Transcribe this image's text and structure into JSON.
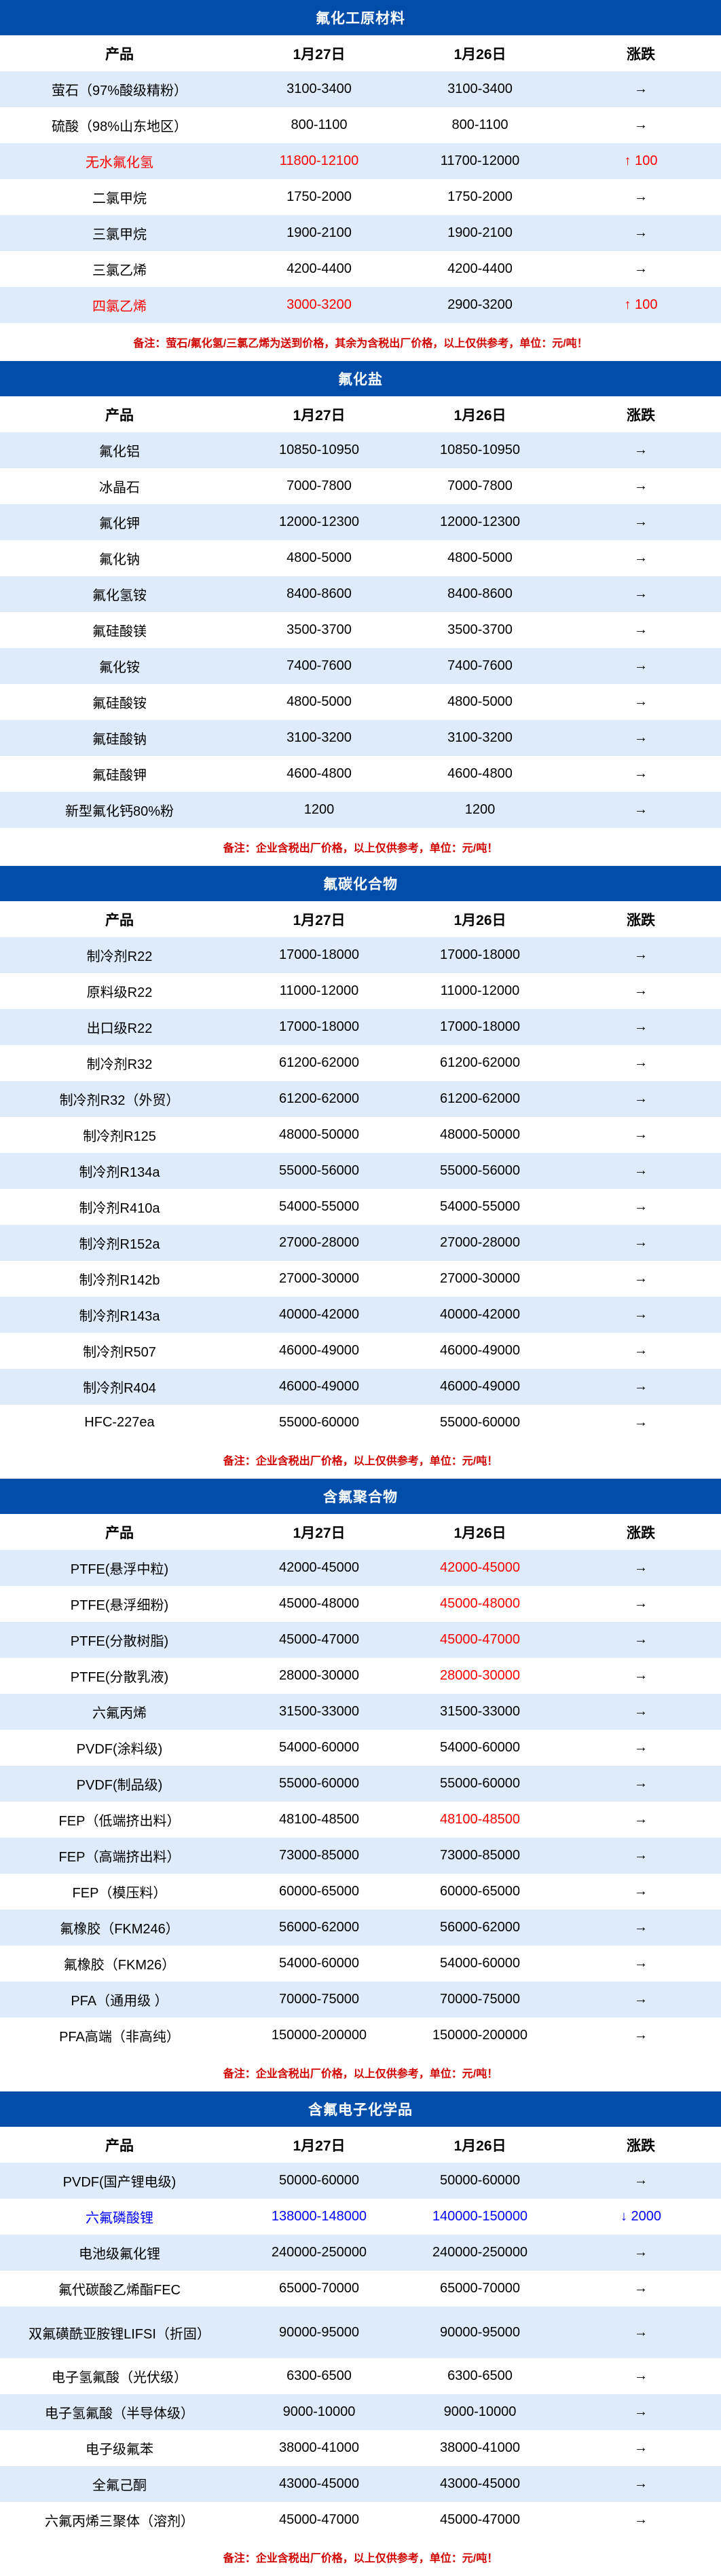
{
  "colors": {
    "header_bg": "#004DAA",
    "stripe": "#DDEBFB",
    "up": "#FF0000",
    "down": "#0000FF",
    "note": "#D00000"
  },
  "columns": [
    "产品",
    "1月27日",
    "1月26日",
    "涨跌"
  ],
  "sections": [
    {
      "title": "氟化工原材料",
      "rows": [
        {
          "cells": [
            "萤石（97%酸级精粉）",
            "3100-3400",
            "3100-3400",
            "→"
          ]
        },
        {
          "cells": [
            "硫酸（98%山东地区）",
            "800-1100",
            "800-1100",
            "→"
          ]
        },
        {
          "cells": [
            "无水氟化氢",
            "11800-12100",
            "11700-12000",
            "↑ 100"
          ],
          "cell_colors": [
            "#FF0000",
            "#FF0000",
            "",
            "#FF0000"
          ]
        },
        {
          "cells": [
            "二氯甲烷",
            "1750-2000",
            "1750-2000",
            "→"
          ]
        },
        {
          "cells": [
            "三氯甲烷",
            "1900-2100",
            "1900-2100",
            "→"
          ]
        },
        {
          "cells": [
            "三氯乙烯",
            "4200-4400",
            "4200-4400",
            "→"
          ]
        },
        {
          "cells": [
            "四氯乙烯",
            "3000-3200",
            "2900-3200",
            "↑ 100"
          ],
          "cell_colors": [
            "#FF0000",
            "#FF0000",
            "",
            "#FF0000"
          ]
        }
      ],
      "note": "备注：萤石/氟化氢/三氯乙烯为送到价格，其余为含税出厂价格，以上仅供参考，单位：元/吨！"
    },
    {
      "title": "氟化盐",
      "rows": [
        {
          "cells": [
            "氟化铝",
            "10850-10950",
            "10850-10950",
            "→"
          ]
        },
        {
          "cells": [
            "冰晶石",
            "7000-7800",
            "7000-7800",
            "→"
          ]
        },
        {
          "cells": [
            "氟化钾",
            "12000-12300",
            "12000-12300",
            "→"
          ]
        },
        {
          "cells": [
            "氟化钠",
            "4800-5000",
            "4800-5000",
            "→"
          ]
        },
        {
          "cells": [
            "氟化氢铵",
            "8400-8600",
            "8400-8600",
            "→"
          ]
        },
        {
          "cells": [
            "氟硅酸镁",
            "3500-3700",
            "3500-3700",
            "→"
          ]
        },
        {
          "cells": [
            "氟化铵",
            "7400-7600",
            "7400-7600",
            "→"
          ]
        },
        {
          "cells": [
            "氟硅酸铵",
            "4800-5000",
            "4800-5000",
            "→"
          ]
        },
        {
          "cells": [
            "氟硅酸钠",
            "3100-3200",
            "3100-3200",
            "→"
          ]
        },
        {
          "cells": [
            "氟硅酸钾",
            "4600-4800",
            "4600-4800",
            "→"
          ]
        },
        {
          "cells": [
            "新型氟化钙80%粉",
            "1200",
            "1200",
            "→"
          ]
        }
      ],
      "note": "备注：企业含税出厂价格，以上仅供参考，单位：元/吨！"
    },
    {
      "title": "氟碳化合物",
      "rows": [
        {
          "cells": [
            "制冷剂R22",
            "17000-18000",
            "17000-18000",
            "→"
          ]
        },
        {
          "cells": [
            "原料级R22",
            "11000-12000",
            "11000-12000",
            "→"
          ]
        },
        {
          "cells": [
            "出口级R22",
            "17000-18000",
            "17000-18000",
            "→"
          ]
        },
        {
          "cells": [
            "制冷剂R32",
            "61200-62000",
            "61200-62000",
            "→"
          ]
        },
        {
          "cells": [
            "制冷剂R32（外贸）",
            "61200-62000",
            "61200-62000",
            "→"
          ]
        },
        {
          "cells": [
            "制冷剂R125",
            "48000-50000",
            "48000-50000",
            "→"
          ]
        },
        {
          "cells": [
            "制冷剂R134a",
            "55000-56000",
            "55000-56000",
            "→"
          ]
        },
        {
          "cells": [
            "制冷剂R410a",
            "54000-55000",
            "54000-55000",
            "→"
          ]
        },
        {
          "cells": [
            "制冷剂R152a",
            "27000-28000",
            "27000-28000",
            "→"
          ]
        },
        {
          "cells": [
            "制冷剂R142b",
            "27000-30000",
            "27000-30000",
            "→"
          ]
        },
        {
          "cells": [
            "制冷剂R143a",
            "40000-42000",
            "40000-42000",
            "→"
          ]
        },
        {
          "cells": [
            "制冷剂R507",
            "46000-49000",
            "46000-49000",
            "→"
          ]
        },
        {
          "cells": [
            "制冷剂R404",
            "46000-49000",
            "46000-49000",
            "→"
          ]
        },
        {
          "cells": [
            "HFC-227ea",
            "55000-60000",
            "55000-60000",
            "→"
          ]
        }
      ],
      "note": "备注：企业含税出厂价格，以上仅供参考，单位：元/吨！"
    },
    {
      "title": "含氟聚合物",
      "rows": [
        {
          "cells": [
            "PTFE(悬浮中粒)",
            "42000-45000",
            "42000-45000",
            "→"
          ],
          "cell_colors": [
            "",
            "",
            "#FF0000",
            ""
          ]
        },
        {
          "cells": [
            "PTFE(悬浮细粉)",
            "45000-48000",
            "45000-48000",
            "→"
          ],
          "cell_colors": [
            "",
            "",
            "#FF0000",
            ""
          ]
        },
        {
          "cells": [
            "PTFE(分散树脂)",
            "45000-47000",
            "45000-47000",
            "→"
          ],
          "cell_colors": [
            "",
            "",
            "#FF0000",
            ""
          ]
        },
        {
          "cells": [
            "PTFE(分散乳液)",
            "28000-30000",
            "28000-30000",
            "→"
          ],
          "cell_colors": [
            "",
            "",
            "#FF0000",
            ""
          ]
        },
        {
          "cells": [
            "六氟丙烯",
            "31500-33000",
            "31500-33000",
            "→"
          ]
        },
        {
          "cells": [
            "PVDF(涂料级)",
            "54000-60000",
            "54000-60000",
            "→"
          ]
        },
        {
          "cells": [
            "PVDF(制品级)",
            "55000-60000",
            "55000-60000",
            "→"
          ]
        },
        {
          "cells": [
            "FEP（低端挤出料）",
            "48100-48500",
            "48100-48500",
            "→"
          ],
          "cell_colors": [
            "",
            "",
            "#FF0000",
            ""
          ]
        },
        {
          "cells": [
            "FEP（高端挤出料）",
            "73000-85000",
            "73000-85000",
            "→"
          ]
        },
        {
          "cells": [
            "FEP（模压料）",
            "60000-65000",
            "60000-65000",
            "→"
          ]
        },
        {
          "cells": [
            "氟橡胶（FKM246）",
            "56000-62000",
            "56000-62000",
            "→"
          ]
        },
        {
          "cells": [
            "氟橡胶（FKM26）",
            "54000-60000",
            "54000-60000",
            "→"
          ]
        },
        {
          "cells": [
            "PFA（通用级 ）",
            "70000-75000",
            "70000-75000",
            "→"
          ]
        },
        {
          "cells": [
            "PFA高端（非高纯）",
            "150000-200000",
            "150000-200000",
            "→"
          ]
        }
      ],
      "note": "备注：企业含税出厂价格，以上仅供参考，单位：元/吨！"
    },
    {
      "title": "含氟电子化学品",
      "rows": [
        {
          "cells": [
            "PVDF(国产锂电级)",
            "50000-60000",
            "50000-60000",
            "→"
          ]
        },
        {
          "cells": [
            "六氟磷酸锂",
            "138000-148000",
            "140000-150000",
            "↓ 2000"
          ],
          "cell_colors": [
            "#0000FF",
            "#0000FF",
            "#0000FF",
            "#0000FF"
          ]
        },
        {
          "cells": [
            "电池级氟化锂",
            "240000-250000",
            "240000-250000",
            "→"
          ]
        },
        {
          "cells": [
            "氟代碳酸乙烯酯FEC",
            "65000-70000",
            "65000-70000",
            "→"
          ]
        },
        {
          "cells": [
            "双氟磺酰亚胺锂LIFSI（折固）",
            "90000-95000",
            "90000-95000",
            "→"
          ],
          "tall": true
        },
        {
          "cells": [
            "电子氢氟酸（光伏级）",
            "6300-6500",
            "6300-6500",
            "→"
          ]
        },
        {
          "cells": [
            "电子氢氟酸（半导体级）",
            "9000-10000",
            "9000-10000",
            "→"
          ]
        },
        {
          "cells": [
            "电子级氟苯",
            "38000-41000",
            "38000-41000",
            "→"
          ]
        },
        {
          "cells": [
            "全氟己酮",
            "43000-45000",
            "43000-45000",
            "→"
          ]
        },
        {
          "cells": [
            "六氟丙烯三聚体（溶剂）",
            "45000-47000",
            "45000-47000",
            "→"
          ]
        }
      ],
      "note": "备注：企业含税出厂价格，以上仅供参考，单位：元/吨！"
    }
  ]
}
